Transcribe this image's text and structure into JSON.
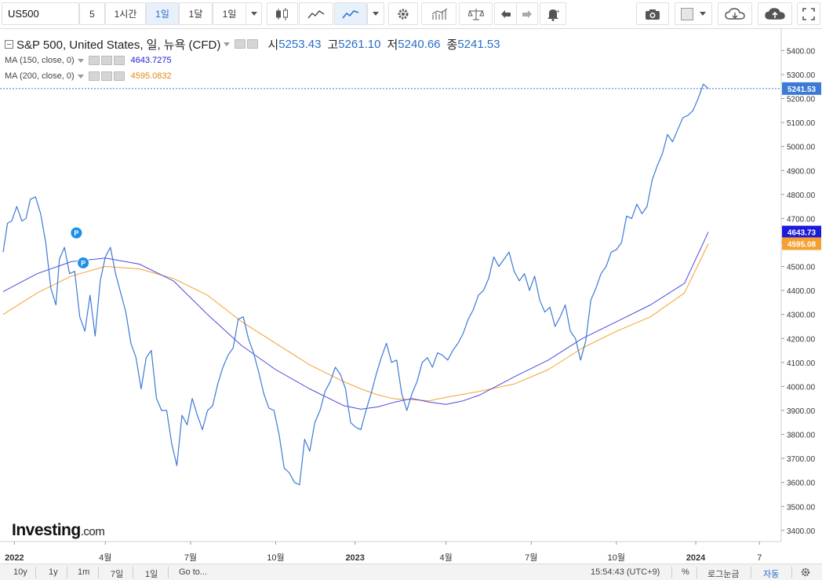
{
  "toolbar": {
    "symbol": "US500",
    "buttons": [
      "5",
      "1시간",
      "1일",
      "1달",
      "1일"
    ],
    "active_index": 2,
    "icons": [
      "candlestick-icon",
      "area-chart-icon",
      "line-chart-icon",
      "settings-gear-icon",
      "indicators-icon",
      "compare-scale-icon",
      "undo-icon",
      "redo-icon",
      "alert-bell-icon",
      "camera-icon",
      "color-square-icon",
      "cloud-download-icon",
      "cloud-upload-icon",
      "fullscreen-icon"
    ]
  },
  "legend": {
    "title": "S&P 500, United States, 일, 뉴욕 (CFD)",
    "ohlc": [
      {
        "k": "시",
        "v": "5253.43"
      },
      {
        "k": "고",
        "v": "5261.10"
      },
      {
        "k": "저",
        "v": "5240.66"
      },
      {
        "k": "종",
        "v": "5241.53"
      }
    ],
    "ma150_label": "MA (150, close, 0)",
    "ma150_value": "4643.7275",
    "ma200_label": "MA (200, close, 0)",
    "ma200_value": "4595.0832"
  },
  "colors": {
    "price": "#3d7ad6",
    "ma150": "#4a4ae0",
    "ma200": "#f5a030",
    "last_tag": "#3d7ad6",
    "ma150_tag": "#1c1cd8",
    "ma200_tag": "#f5a030"
  },
  "chart_data": {
    "type": "line",
    "title": "S&P 500, United States, 일, 뉴욕 (CFD)",
    "ylim": [
      3370,
      5470
    ],
    "y_ticks": [
      3400,
      3500,
      3600,
      3700,
      3800,
      3900,
      4000,
      4100,
      4200,
      4300,
      4400,
      4500,
      4600,
      4700,
      4800,
      4900,
      5000,
      5100,
      5200,
      5300,
      5400
    ],
    "x_ticks": [
      {
        "label": "2022",
        "t": 0.033
      },
      {
        "label": "4월",
        "t": 0.3
      },
      {
        "label": "7월",
        "t": 0.55
      },
      {
        "label": "10월",
        "t": 0.8
      },
      {
        "label": "2023",
        "t": 1.033
      },
      {
        "label": "4월",
        "t": 1.3
      },
      {
        "label": "7월",
        "t": 1.55
      },
      {
        "label": "10월",
        "t": 1.8
      },
      {
        "label": "2024",
        "t": 2.033
      },
      {
        "label": "7",
        "t": 2.22
      }
    ],
    "xlim": [
      0,
      2.27
    ],
    "series": [
      {
        "name": "S&P 500",
        "key": "price",
        "points": [
          [
            0,
            4560
          ],
          [
            0.013,
            4680
          ],
          [
            0.025,
            4690
          ],
          [
            0.04,
            4750
          ],
          [
            0.055,
            4690
          ],
          [
            0.067,
            4700
          ],
          [
            0.08,
            4780
          ],
          [
            0.095,
            4790
          ],
          [
            0.11,
            4720
          ],
          [
            0.125,
            4600
          ],
          [
            0.14,
            4410
          ],
          [
            0.155,
            4340
          ],
          [
            0.165,
            4530
          ],
          [
            0.18,
            4580
          ],
          [
            0.195,
            4470
          ],
          [
            0.21,
            4480
          ],
          [
            0.225,
            4290
          ],
          [
            0.24,
            4230
          ],
          [
            0.255,
            4380
          ],
          [
            0.27,
            4210
          ],
          [
            0.285,
            4440
          ],
          [
            0.3,
            4540
          ],
          [
            0.315,
            4580
          ],
          [
            0.33,
            4470
          ],
          [
            0.345,
            4390
          ],
          [
            0.36,
            4310
          ],
          [
            0.375,
            4180
          ],
          [
            0.39,
            4120
          ],
          [
            0.405,
            3990
          ],
          [
            0.42,
            4120
          ],
          [
            0.435,
            4150
          ],
          [
            0.45,
            3950
          ],
          [
            0.465,
            3900
          ],
          [
            0.48,
            3900
          ],
          [
            0.495,
            3760
          ],
          [
            0.51,
            3670
          ],
          [
            0.525,
            3880
          ],
          [
            0.54,
            3840
          ],
          [
            0.555,
            3950
          ],
          [
            0.57,
            3880
          ],
          [
            0.585,
            3820
          ],
          [
            0.6,
            3900
          ],
          [
            0.615,
            3920
          ],
          [
            0.63,
            4010
          ],
          [
            0.645,
            4080
          ],
          [
            0.66,
            4130
          ],
          [
            0.675,
            4160
          ],
          [
            0.69,
            4280
          ],
          [
            0.705,
            4290
          ],
          [
            0.72,
            4200
          ],
          [
            0.735,
            4140
          ],
          [
            0.75,
            4060
          ],
          [
            0.765,
            3970
          ],
          [
            0.78,
            3910
          ],
          [
            0.795,
            3900
          ],
          [
            0.81,
            3800
          ],
          [
            0.825,
            3660
          ],
          [
            0.84,
            3640
          ],
          [
            0.855,
            3600
          ],
          [
            0.87,
            3590
          ],
          [
            0.885,
            3780
          ],
          [
            0.9,
            3730
          ],
          [
            0.915,
            3850
          ],
          [
            0.93,
            3900
          ],
          [
            0.945,
            3980
          ],
          [
            0.96,
            4020
          ],
          [
            0.975,
            4080
          ],
          [
            0.99,
            4050
          ],
          [
            1.005,
            3990
          ],
          [
            1.02,
            3850
          ],
          [
            1.035,
            3830
          ],
          [
            1.05,
            3820
          ],
          [
            1.065,
            3900
          ],
          [
            1.08,
            3970
          ],
          [
            1.095,
            4050
          ],
          [
            1.11,
            4120
          ],
          [
            1.125,
            4180
          ],
          [
            1.14,
            4100
          ],
          [
            1.155,
            4110
          ],
          [
            1.17,
            3970
          ],
          [
            1.185,
            3900
          ],
          [
            1.2,
            3970
          ],
          [
            1.215,
            4020
          ],
          [
            1.23,
            4100
          ],
          [
            1.245,
            4120
          ],
          [
            1.26,
            4080
          ],
          [
            1.275,
            4140
          ],
          [
            1.29,
            4130
          ],
          [
            1.305,
            4110
          ],
          [
            1.32,
            4150
          ],
          [
            1.335,
            4180
          ],
          [
            1.35,
            4220
          ],
          [
            1.365,
            4280
          ],
          [
            1.38,
            4320
          ],
          [
            1.395,
            4380
          ],
          [
            1.41,
            4400
          ],
          [
            1.425,
            4450
          ],
          [
            1.44,
            4540
          ],
          [
            1.455,
            4500
          ],
          [
            1.47,
            4530
          ],
          [
            1.485,
            4560
          ],
          [
            1.5,
            4480
          ],
          [
            1.515,
            4440
          ],
          [
            1.53,
            4470
          ],
          [
            1.545,
            4400
          ],
          [
            1.56,
            4460
          ],
          [
            1.575,
            4360
          ],
          [
            1.59,
            4310
          ],
          [
            1.605,
            4330
          ],
          [
            1.62,
            4250
          ],
          [
            1.635,
            4290
          ],
          [
            1.65,
            4340
          ],
          [
            1.665,
            4230
          ],
          [
            1.68,
            4200
          ],
          [
            1.695,
            4110
          ],
          [
            1.71,
            4190
          ],
          [
            1.725,
            4360
          ],
          [
            1.74,
            4410
          ],
          [
            1.755,
            4470
          ],
          [
            1.77,
            4500
          ],
          [
            1.785,
            4560
          ],
          [
            1.8,
            4570
          ],
          [
            1.815,
            4600
          ],
          [
            1.83,
            4710
          ],
          [
            1.845,
            4700
          ],
          [
            1.86,
            4760
          ],
          [
            1.875,
            4720
          ],
          [
            1.89,
            4750
          ],
          [
            1.905,
            4860
          ],
          [
            1.92,
            4920
          ],
          [
            1.935,
            4970
          ],
          [
            1.95,
            5050
          ],
          [
            1.965,
            5020
          ],
          [
            1.98,
            5070
          ],
          [
            1.995,
            5120
          ],
          [
            2.01,
            5130
          ],
          [
            2.025,
            5150
          ],
          [
            2.04,
            5200
          ],
          [
            2.055,
            5260
          ],
          [
            2.07,
            5241.53
          ]
        ]
      },
      {
        "name": "MA (150, close, 0)",
        "key": "ma150",
        "points": [
          [
            0,
            4395
          ],
          [
            0.1,
            4470
          ],
          [
            0.2,
            4520
          ],
          [
            0.3,
            4535
          ],
          [
            0.4,
            4510
          ],
          [
            0.5,
            4440
          ],
          [
            0.6,
            4300
          ],
          [
            0.7,
            4170
          ],
          [
            0.8,
            4070
          ],
          [
            0.9,
            3990
          ],
          [
            1.0,
            3920
          ],
          [
            1.05,
            3905
          ],
          [
            1.1,
            3915
          ],
          [
            1.15,
            3935
          ],
          [
            1.2,
            3950
          ],
          [
            1.25,
            3935
          ],
          [
            1.3,
            3925
          ],
          [
            1.35,
            3940
          ],
          [
            1.4,
            3965
          ],
          [
            1.5,
            4040
          ],
          [
            1.6,
            4110
          ],
          [
            1.7,
            4200
          ],
          [
            1.8,
            4270
          ],
          [
            1.9,
            4340
          ],
          [
            2.0,
            4430
          ],
          [
            2.07,
            4643.7275
          ]
        ]
      },
      {
        "name": "MA (200, close, 0)",
        "key": "ma200",
        "points": [
          [
            0,
            4300
          ],
          [
            0.1,
            4390
          ],
          [
            0.2,
            4460
          ],
          [
            0.3,
            4500
          ],
          [
            0.4,
            4490
          ],
          [
            0.5,
            4450
          ],
          [
            0.6,
            4380
          ],
          [
            0.7,
            4270
          ],
          [
            0.8,
            4180
          ],
          [
            0.9,
            4090
          ],
          [
            1.0,
            4020
          ],
          [
            1.05,
            3990
          ],
          [
            1.1,
            3965
          ],
          [
            1.15,
            3948
          ],
          [
            1.2,
            3945
          ],
          [
            1.25,
            3940
          ],
          [
            1.3,
            3955
          ],
          [
            1.4,
            3980
          ],
          [
            1.5,
            4010
          ],
          [
            1.6,
            4070
          ],
          [
            1.7,
            4160
          ],
          [
            1.8,
            4230
          ],
          [
            1.9,
            4290
          ],
          [
            2.0,
            4390
          ],
          [
            2.07,
            4595.0832
          ]
        ]
      }
    ],
    "price_markers": [
      {
        "label": "5241.53",
        "value": 5241.53,
        "key": "last_tag"
      },
      {
        "label": "4643.73",
        "value": 4643.73,
        "key": "ma150_tag"
      },
      {
        "label": "4595.08",
        "value": 4595.08,
        "key": "ma200_tag"
      }
    ],
    "event_markers": [
      {
        "label": "P",
        "t": 0.215,
        "value": 4640
      },
      {
        "label": "P",
        "t": 0.235,
        "value": 4515
      }
    ]
  },
  "bottombar": {
    "ranges": [
      "10y",
      "1y",
      "1m",
      "7일",
      "1일"
    ],
    "goto": "Go to...",
    "time": "15:54:43 (UTC+9)",
    "percent": "%",
    "log": "로그눈금",
    "auto": "자동"
  },
  "logo": {
    "main": "Investing",
    "suffix": ".com"
  }
}
